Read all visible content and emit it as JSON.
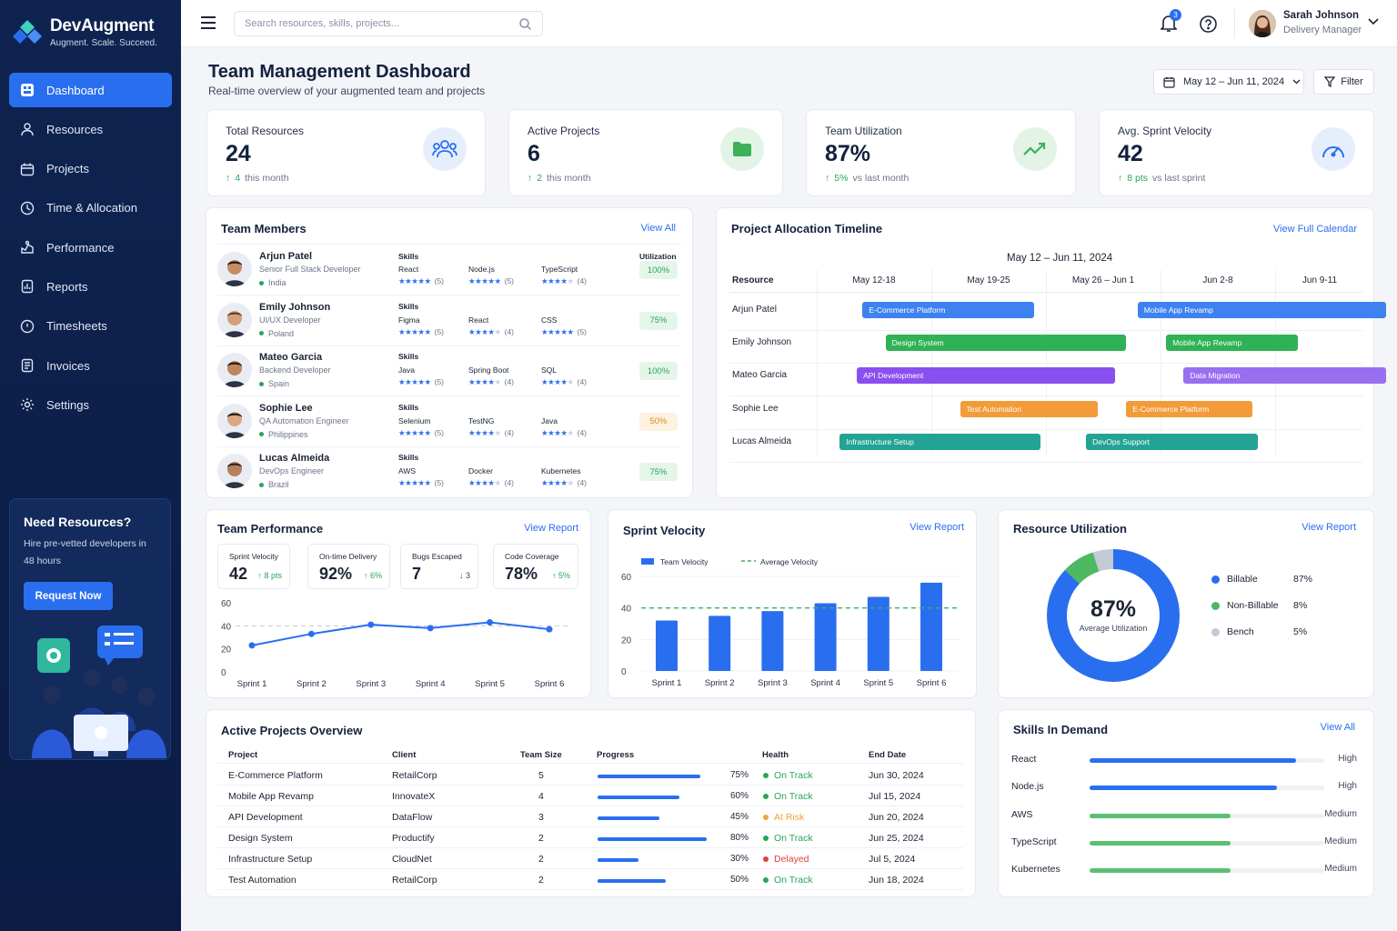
{
  "app": {
    "name": "DevAugment",
    "tagline": "Augment. Scale. Succeed."
  },
  "nav": [
    "Dashboard",
    "Resources",
    "Projects",
    "Time & Allocation",
    "Performance",
    "Reports",
    "Timesheets",
    "Invoices",
    "Settings"
  ],
  "promo": {
    "title": "Need Resources?",
    "text": "Hire pre-vetted developers in 48 hours",
    "button": "Request Now"
  },
  "topbar": {
    "search_placeholder": "Search resources, skills, projects...",
    "notifications": "3",
    "user_name": "Sarah Johnson",
    "user_role": "Delivery Manager"
  },
  "page": {
    "title": "Team Management Dashboard",
    "subtitle": "Real-time overview of your augmented team and projects",
    "date_range": "May 12 – Jun 11, 2024",
    "filter": "Filter"
  },
  "kpis": [
    {
      "label": "Total Resources",
      "value": "24",
      "delta_value": "4",
      "delta_text": "this month"
    },
    {
      "label": "Active Projects",
      "value": "6",
      "delta_value": "2",
      "delta_text": "this month"
    },
    {
      "label": "Team Utilization",
      "value": "87%",
      "delta_value": "5%",
      "delta_text": "vs last month"
    },
    {
      "label": "Avg. Sprint Velocity",
      "value": "42",
      "delta_value": "8 pts",
      "delta_text": "vs last sprint"
    }
  ],
  "team": {
    "title": "Team Members",
    "link": "View All",
    "skills_header": "Skills",
    "util_header": "Utilization",
    "members": [
      {
        "name": "Arjun Patel",
        "role": "Senior Full Stack Developer",
        "location": "India",
        "utilization": "100%",
        "skills": [
          {
            "name": "React",
            "rating": "(5)"
          },
          {
            "name": "Node.js",
            "rating": "(5)"
          },
          {
            "name": "TypeScript",
            "rating": "(4)"
          }
        ]
      },
      {
        "name": "Emily Johnson",
        "role": "UI/UX Developer",
        "location": "Poland",
        "utilization": "75%",
        "skills": [
          {
            "name": "Figma",
            "rating": "(5)"
          },
          {
            "name": "React",
            "rating": "(4)"
          },
          {
            "name": "CSS",
            "rating": "(5)"
          }
        ]
      },
      {
        "name": "Mateo Garcia",
        "role": "Backend Developer",
        "location": "Spain",
        "utilization": "100%",
        "skills": [
          {
            "name": "Java",
            "rating": "(5)"
          },
          {
            "name": "Spring Boot",
            "rating": "(4)"
          },
          {
            "name": "SQL",
            "rating": "(4)"
          }
        ]
      },
      {
        "name": "Sophie Lee",
        "role": "QA Automation Engineer",
        "location": "Philippines",
        "utilization": "50%",
        "skills": [
          {
            "name": "Selenium",
            "rating": "(5)"
          },
          {
            "name": "TestNG",
            "rating": "(4)"
          },
          {
            "name": "Java",
            "rating": "(4)"
          }
        ]
      },
      {
        "name": "Lucas Almeida",
        "role": "DevOps Engineer",
        "location": "Brazil",
        "utilization": "75%",
        "skills": [
          {
            "name": "AWS",
            "rating": "(5)"
          },
          {
            "name": "Docker",
            "rating": "(4)"
          },
          {
            "name": "Kubernetes",
            "rating": "(4)"
          }
        ]
      }
    ]
  },
  "timeline": {
    "title": "Project Allocation Timeline",
    "link": "View Full Calendar",
    "range": "May 12 – Jun 11, 2024",
    "resource_header": "Resource",
    "weeks": [
      "May 12-18",
      "May 19-25",
      "May 26 – Jun 1",
      "Jun 2-8",
      "Jun 9-11"
    ],
    "rows": [
      {
        "name": "Arjun Patel",
        "bars": [
          {
            "label": "E-Commerce Platform",
            "color": "#3d82f0"
          },
          {
            "label": "Mobile App Revamp",
            "color": "#3d82f0"
          }
        ]
      },
      {
        "name": "Emily Johnson",
        "bars": [
          {
            "label": "Design System",
            "color": "#2fb155"
          },
          {
            "label": "Mobile App Revamp",
            "color": "#2fb155"
          }
        ]
      },
      {
        "name": "Mateo Garcia",
        "bars": [
          {
            "label": "API Development",
            "color": "#8a4ff0"
          },
          {
            "label": "Data Migration",
            "color": "#9a6ef0"
          }
        ]
      },
      {
        "name": "Sophie Lee",
        "bars": [
          {
            "label": "Test Automation",
            "color": "#f29b38"
          },
          {
            "label": "E-Commerce Platform",
            "color": "#f29b38"
          }
        ]
      },
      {
        "name": "Lucas Almeida",
        "bars": [
          {
            "label": "Infrastructure Setup",
            "color": "#23a394"
          },
          {
            "label": "DevOps Support",
            "color": "#23a394"
          }
        ]
      }
    ]
  },
  "team_performance": {
    "title": "Team Performance",
    "link": "View Report",
    "stats": [
      {
        "label": "Sprint Velocity",
        "value": "42",
        "delta": "8 pts",
        "dir": "up"
      },
      {
        "label": "On-time Delivery",
        "value": "92%",
        "delta": "6%",
        "dir": "up"
      },
      {
        "label": "Bugs Escaped",
        "value": "7",
        "delta": "3",
        "dir": "down"
      },
      {
        "label": "Code Coverage",
        "value": "78%",
        "delta": "5%",
        "dir": "up"
      }
    ]
  },
  "sprint_velocity": {
    "title": "Sprint Velocity",
    "link": "View Report",
    "legend_team": "Team Velocity",
    "legend_avg": "Average Velocity"
  },
  "resource_utilization": {
    "title": "Resource Utilization",
    "link": "View Report",
    "center_value": "87%",
    "center_label": "Average Utilization"
  },
  "projects": {
    "title": "Active Projects Overview",
    "headers": [
      "Project",
      "Client",
      "Team Size",
      "Progress",
      "Health",
      "End Date"
    ],
    "rows": [
      {
        "project": "E-Commerce Platform",
        "client": "RetailCorp",
        "team": "5",
        "progress": 75,
        "progress_label": "75%",
        "health": "On Track",
        "health_color": "#27a559",
        "end": "Jun 30, 2024"
      },
      {
        "project": "Mobile App Revamp",
        "client": "InnovateX",
        "team": "4",
        "progress": 60,
        "progress_label": "60%",
        "health": "On Track",
        "health_color": "#27a559",
        "end": "Jul 15, 2024"
      },
      {
        "project": "API Development",
        "client": "DataFlow",
        "team": "3",
        "progress": 45,
        "progress_label": "45%",
        "health": "At Risk",
        "health_color": "#f2a33a",
        "end": "Jun 20, 2024"
      },
      {
        "project": "Design System",
        "client": "Productify",
        "team": "2",
        "progress": 80,
        "progress_label": "80%",
        "health": "On Track",
        "health_color": "#27a559",
        "end": "Jun 25, 2024"
      },
      {
        "project": "Infrastructure Setup",
        "client": "CloudNet",
        "team": "2",
        "progress": 30,
        "progress_label": "30%",
        "health": "Delayed",
        "health_color": "#e0413a",
        "end": "Jul 5, 2024"
      },
      {
        "project": "Test Automation",
        "client": "RetailCorp",
        "team": "2",
        "progress": 50,
        "progress_label": "50%",
        "health": "On Track",
        "health_color": "#27a559",
        "end": "Jun 18, 2024"
      }
    ]
  },
  "skills_demand": {
    "title": "Skills In Demand",
    "link": "View All",
    "items": [
      {
        "name": "React",
        "level": "High",
        "fill": 0.88,
        "color": "#2a6ef0"
      },
      {
        "name": "Node.js",
        "level": "High",
        "fill": 0.8,
        "color": "#2a6ef0"
      },
      {
        "name": "AWS",
        "level": "Medium",
        "fill": 0.6,
        "color": "#5cbf72"
      },
      {
        "name": "TypeScript",
        "level": "Medium",
        "fill": 0.6,
        "color": "#5cbf72"
      },
      {
        "name": "Kubernetes",
        "level": "Medium",
        "fill": 0.6,
        "color": "#5cbf72"
      }
    ]
  },
  "chart_data": [
    {
      "type": "line",
      "title": "Team Performance",
      "categories": [
        "Sprint 1",
        "Sprint 2",
        "Sprint 3",
        "Sprint 4",
        "Sprint 5",
        "Sprint 6"
      ],
      "series": [
        {
          "values": [
            23,
            33,
            41,
            38,
            43,
            37
          ]
        },
        {
          "values": [
            40,
            40,
            40,
            40,
            40,
            40
          ]
        }
      ],
      "ylim": [
        0,
        60
      ],
      "yticks": [
        0,
        20,
        40,
        60
      ]
    },
    {
      "type": "bar",
      "title": "Sprint Velocity",
      "categories": [
        "Sprint 1",
        "Sprint 2",
        "Sprint 3",
        "Sprint 4",
        "Sprint 5",
        "Sprint 6"
      ],
      "series": [
        {
          "name": "Team Velocity",
          "values": [
            32,
            35,
            38,
            43,
            47,
            56
          ]
        },
        {
          "name": "Average Velocity",
          "values": [
            40,
            40,
            40,
            40,
            40,
            40
          ]
        }
      ],
      "ylim": [
        0,
        60
      ],
      "yticks": [
        0,
        20,
        40,
        60
      ]
    },
    {
      "type": "pie",
      "title": "Resource Utilization",
      "labels": [
        "Billable",
        "Non-Billable",
        "Bench"
      ],
      "values": [
        87,
        8,
        5
      ],
      "value_labels": [
        "87%",
        "8%",
        "5%"
      ],
      "colors": [
        "#2a6ef0",
        "#4cb862",
        "#c3c9d6"
      ]
    }
  ]
}
